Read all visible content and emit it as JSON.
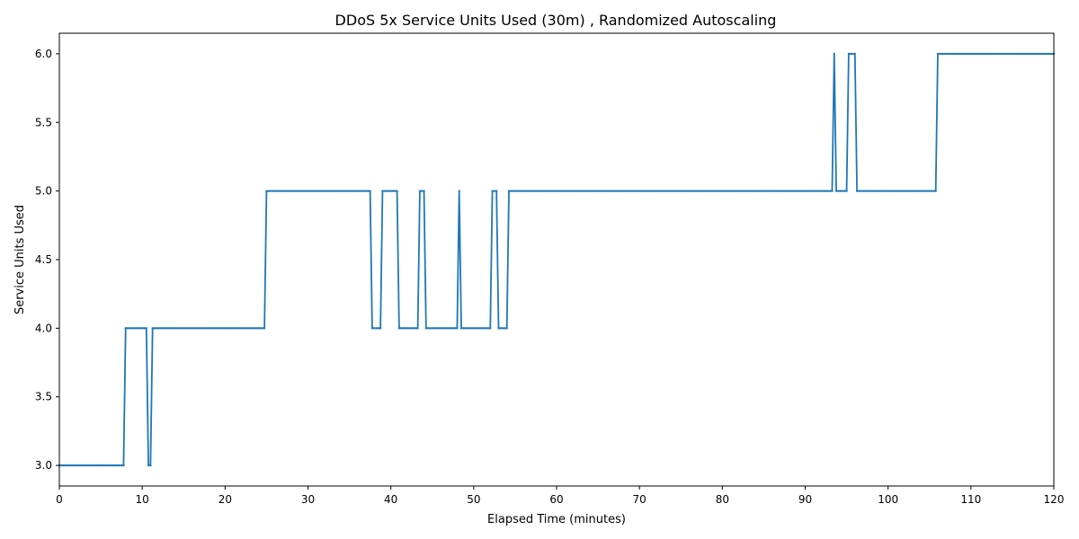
{
  "chart_data": {
    "type": "line",
    "title": "DDoS 5x Service Units Used (30m) , Randomized Autoscaling",
    "xlabel": "Elapsed Time (minutes)",
    "ylabel": "Service Units Used",
    "xlim": [
      0,
      120
    ],
    "ylim": [
      2.85,
      6.15
    ],
    "xticks": [
      0,
      10,
      20,
      30,
      40,
      50,
      60,
      70,
      80,
      90,
      100,
      110,
      120
    ],
    "xtick_labels": [
      "0",
      "10",
      "20",
      "30",
      "40",
      "50",
      "60",
      "70",
      "80",
      "90",
      "100",
      "110",
      "120"
    ],
    "yticks": [
      3.0,
      3.5,
      4.0,
      4.5,
      5.0,
      5.5,
      6.0
    ],
    "ytick_labels": [
      "3.0",
      "3.5",
      "4.0",
      "4.5",
      "5.0",
      "5.5",
      "6.0"
    ],
    "grid": false,
    "legend": "none",
    "series": [
      {
        "color": "#1f77b4",
        "marker": "small-dot",
        "sample_interval_minutes": 0.25,
        "steps": [
          {
            "start": 0,
            "end": 7.75,
            "value": 3
          },
          {
            "start": 8,
            "end": 10.5,
            "value": 4
          },
          {
            "start": 10.75,
            "end": 11,
            "value": 3
          },
          {
            "start": 11.25,
            "end": 24.75,
            "value": 4
          },
          {
            "start": 25,
            "end": 37.5,
            "value": 5
          },
          {
            "start": 37.75,
            "end": 38.75,
            "value": 4
          },
          {
            "start": 39,
            "end": 40.75,
            "value": 5
          },
          {
            "start": 41,
            "end": 43.25,
            "value": 4
          },
          {
            "start": 43.5,
            "end": 44,
            "value": 5
          },
          {
            "start": 44.25,
            "end": 48,
            "value": 4
          },
          {
            "start": 48.25,
            "end": 48.25,
            "value": 5
          },
          {
            "start": 48.5,
            "end": 52,
            "value": 4
          },
          {
            "start": 52.25,
            "end": 52.75,
            "value": 5
          },
          {
            "start": 53,
            "end": 54,
            "value": 4
          },
          {
            "start": 54.25,
            "end": 93.25,
            "value": 5
          },
          {
            "start": 93.5,
            "end": 93.5,
            "value": 6
          },
          {
            "start": 93.75,
            "end": 95,
            "value": 5
          },
          {
            "start": 95.25,
            "end": 96,
            "value": 6
          },
          {
            "start": 96.25,
            "end": 105.75,
            "value": 5
          },
          {
            "start": 106,
            "end": 120,
            "value": 6
          }
        ]
      }
    ]
  }
}
